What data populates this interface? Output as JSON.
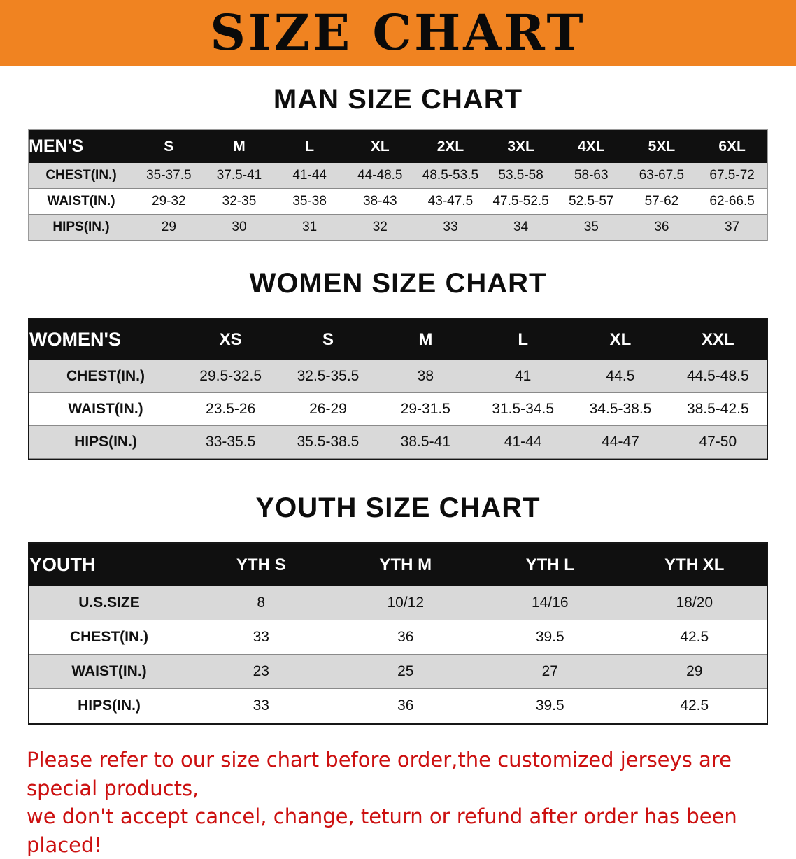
{
  "banner": {
    "title": "SIZE CHART"
  },
  "men": {
    "heading": "MAN SIZE CHART",
    "table": {
      "header": [
        "MEN'S",
        "S",
        "M",
        "L",
        "XL",
        "2XL",
        "3XL",
        "4XL",
        "5XL",
        "6XL"
      ],
      "rows": [
        [
          "CHEST(IN.)",
          "35-37.5",
          "37.5-41",
          "41-44",
          "44-48.5",
          "48.5-53.5",
          "53.5-58",
          "58-63",
          "63-67.5",
          "67.5-72"
        ],
        [
          "WAIST(IN.)",
          "29-32",
          "32-35",
          "35-38",
          "38-43",
          "43-47.5",
          "47.5-52.5",
          "52.5-57",
          "57-62",
          "62-66.5"
        ],
        [
          "HIPS(IN.)",
          "29",
          "30",
          "31",
          "32",
          "33",
          "34",
          "35",
          "36",
          "37"
        ]
      ]
    }
  },
  "women": {
    "heading": "WOMEN SIZE CHART",
    "table": {
      "header": [
        "WOMEN'S",
        "XS",
        "S",
        "M",
        "L",
        "XL",
        "XXL"
      ],
      "rows": [
        [
          "CHEST(IN.)",
          "29.5-32.5",
          "32.5-35.5",
          "38",
          "41",
          "44.5",
          "44.5-48.5"
        ],
        [
          "WAIST(IN.)",
          "23.5-26",
          "26-29",
          "29-31.5",
          "31.5-34.5",
          "34.5-38.5",
          "38.5-42.5"
        ],
        [
          "HIPS(IN.)",
          "33-35.5",
          "35.5-38.5",
          "38.5-41",
          "41-44",
          "44-47",
          "47-50"
        ]
      ]
    }
  },
  "youth": {
    "heading": "YOUTH SIZE CHART",
    "table": {
      "header": [
        "YOUTH",
        "YTH S",
        "YTH M",
        "YTH L",
        "YTH XL"
      ],
      "rows": [
        [
          "U.S.SIZE",
          "8",
          "10/12",
          "14/16",
          "18/20"
        ],
        [
          "CHEST(IN.)",
          "33",
          "36",
          "39.5",
          "42.5"
        ],
        [
          "WAIST(IN.)",
          "23",
          "25",
          "27",
          "29"
        ],
        [
          "HIPS(IN.)",
          "33",
          "36",
          "39.5",
          "42.5"
        ]
      ]
    }
  },
  "footer": {
    "line1": "Please refer to our size chart before order,the customized jerseys are special products,",
    "line2": "we don't accept cancel, change, teturn or refund after order has been placed!"
  },
  "colors": {
    "banner_bg": "#f08321",
    "header_bg": "#101010",
    "stripe": "#d9d9d9",
    "notice_text": "#cc1010"
  }
}
